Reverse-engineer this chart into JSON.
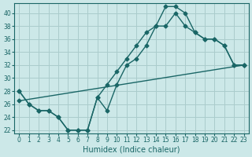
{
  "title": "",
  "xlabel": "Humidex (Indice chaleur)",
  "ylabel": "",
  "bg_color": "#cce8e8",
  "line_color": "#1a6666",
  "xlim": [
    -0.5,
    23.5
  ],
  "ylim": [
    21.5,
    41.5
  ],
  "xticks": [
    0,
    1,
    2,
    3,
    4,
    5,
    6,
    7,
    8,
    9,
    10,
    11,
    12,
    13,
    14,
    15,
    16,
    17,
    18,
    19,
    20,
    21,
    22,
    23
  ],
  "yticks": [
    22,
    24,
    26,
    28,
    30,
    32,
    34,
    36,
    38,
    40
  ],
  "grid_color": "#aacccc",
  "line1_x": [
    0,
    1,
    2,
    3,
    4,
    5,
    6,
    7,
    8,
    9,
    10,
    11,
    12,
    13,
    14,
    15,
    16,
    17,
    18,
    19,
    20,
    21,
    22,
    23
  ],
  "line1_y": [
    28,
    26,
    25,
    25,
    24,
    22,
    22,
    22,
    27,
    25,
    29,
    32,
    33,
    35,
    38,
    41,
    41,
    40,
    37,
    36,
    36,
    35,
    32,
    32
  ],
  "line2_x": [
    0,
    1,
    2,
    3,
    4,
    5,
    6,
    7,
    8,
    9,
    10,
    11,
    12,
    13,
    14,
    15,
    16,
    17,
    18,
    19,
    20,
    21,
    22,
    23
  ],
  "line2_y": [
    28,
    26,
    25,
    25,
    24,
    22,
    22,
    22,
    27,
    29,
    31,
    33,
    35,
    37,
    38,
    38,
    40,
    38,
    37,
    36,
    36,
    35,
    32,
    32
  ],
  "line3_x": [
    0,
    23
  ],
  "line3_y": [
    26.5,
    32
  ]
}
